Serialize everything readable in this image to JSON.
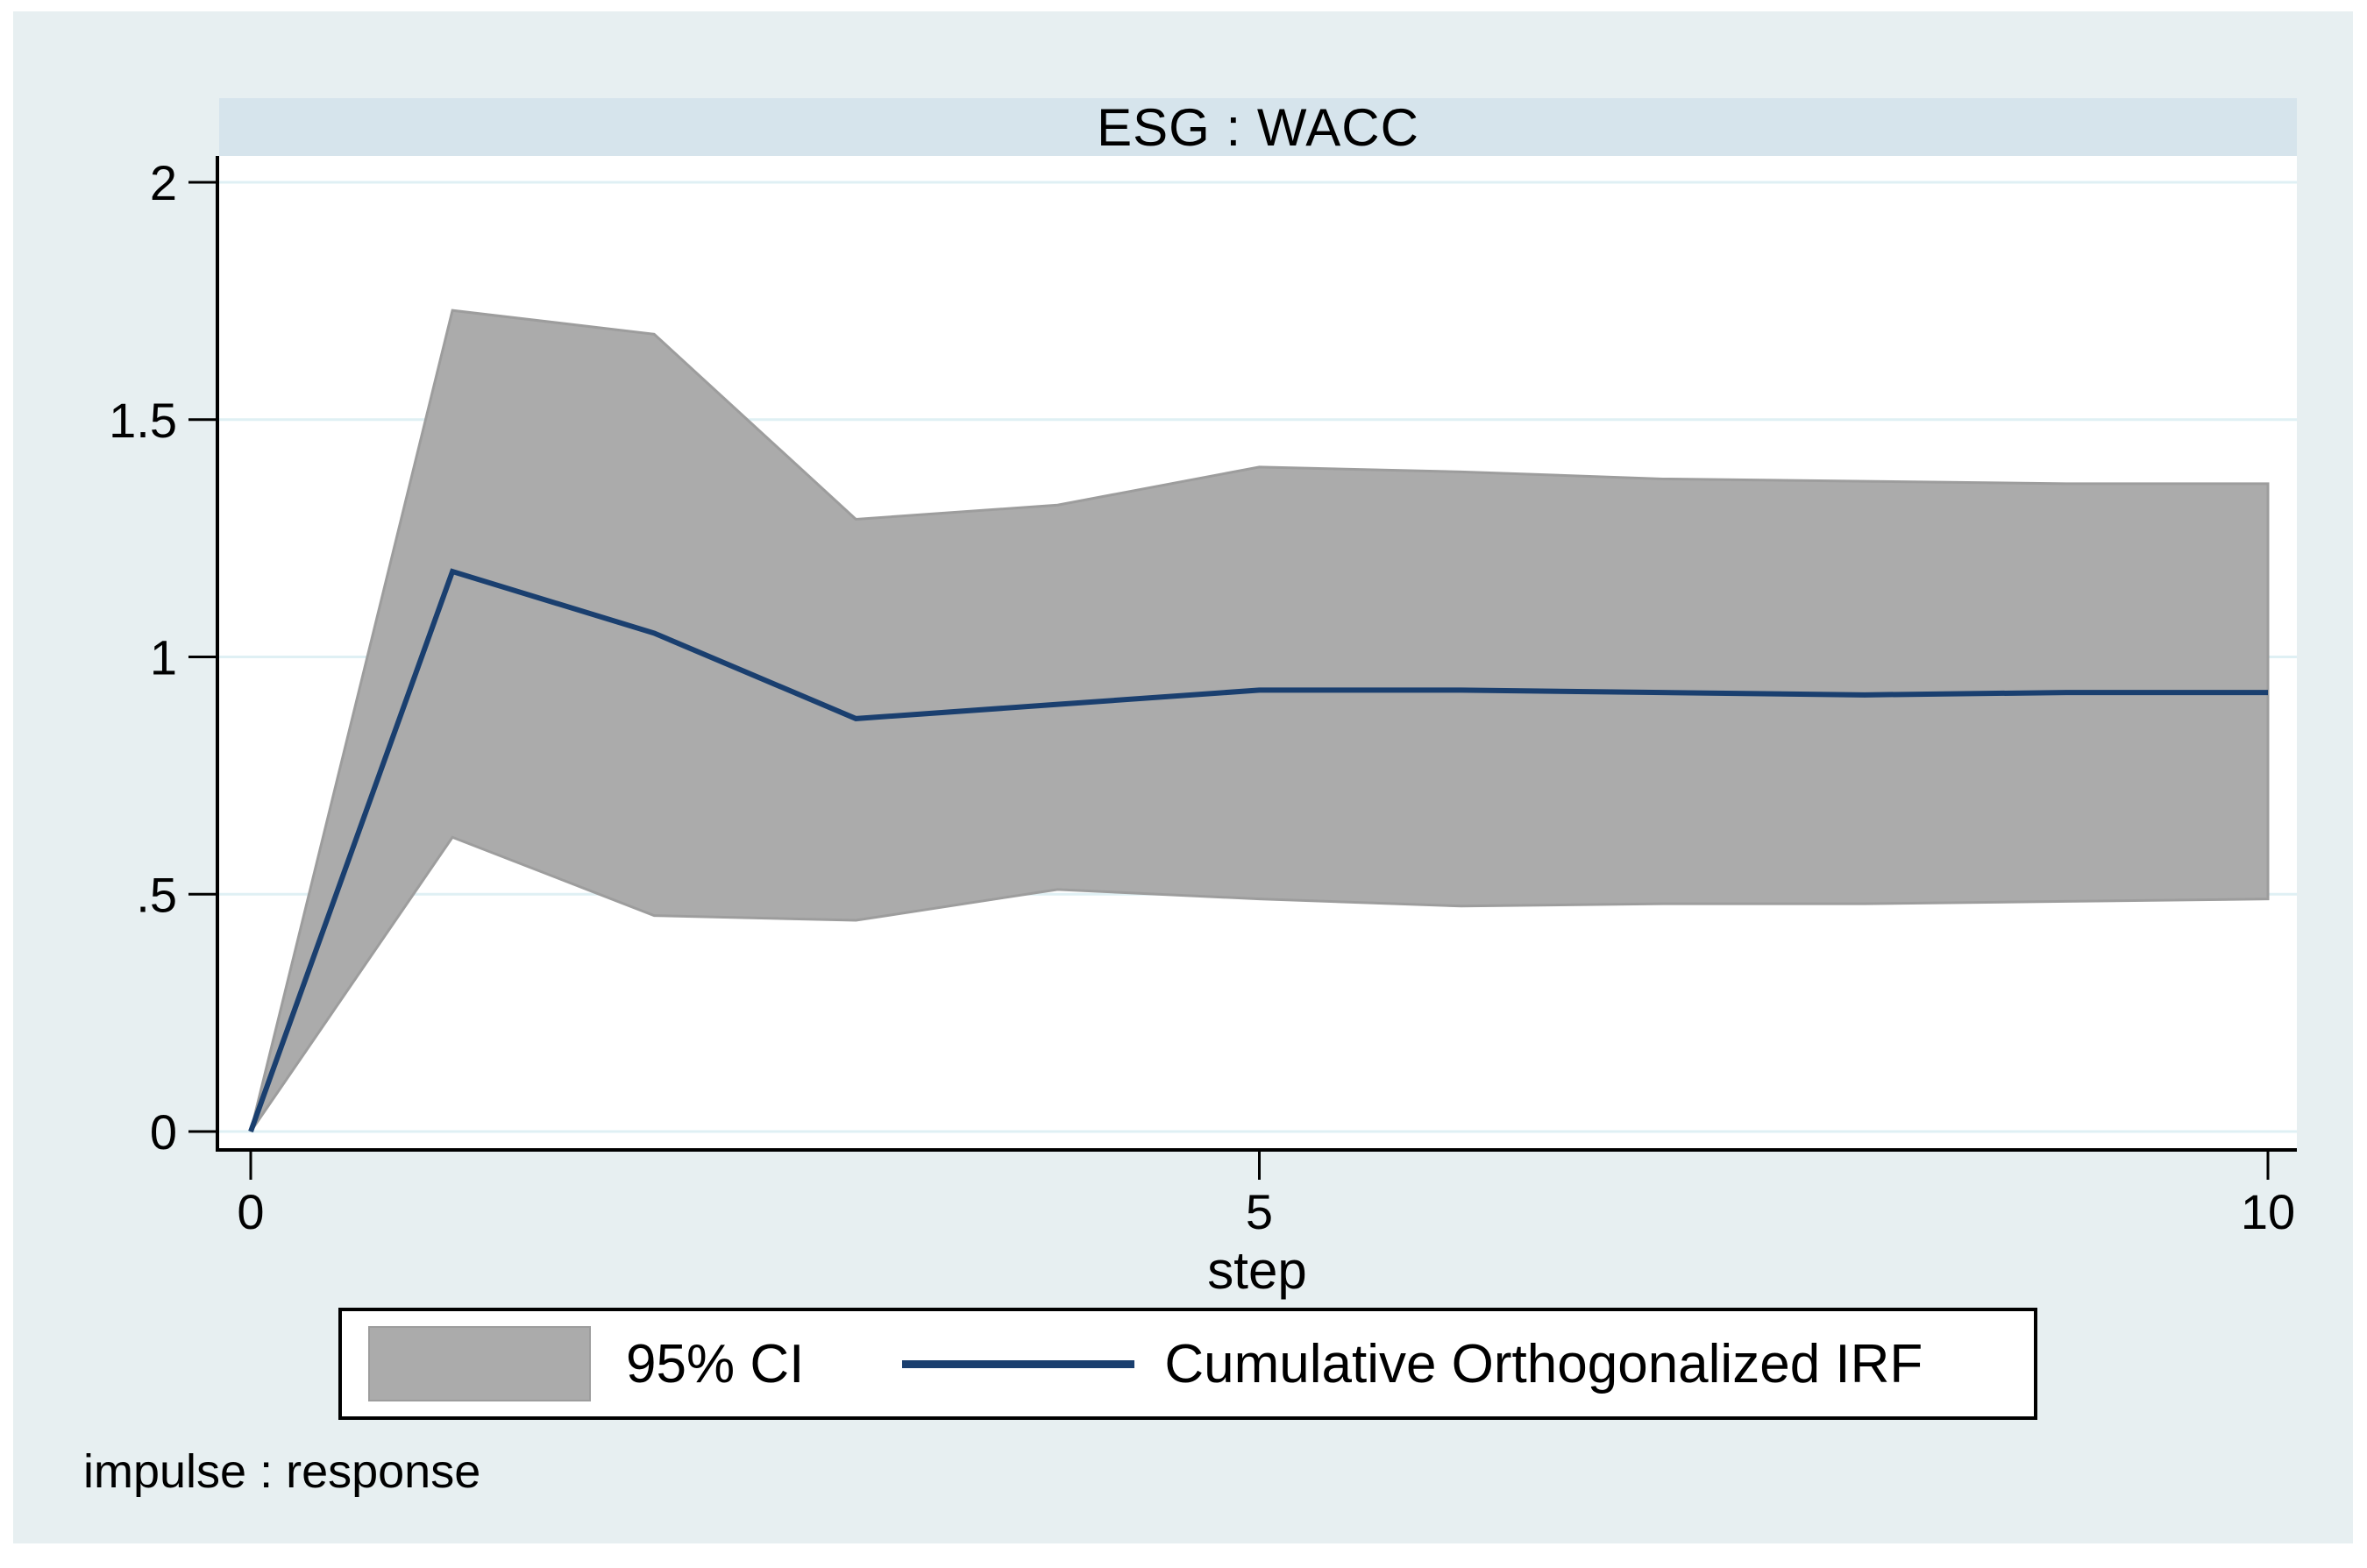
{
  "title": "ESG : WACC",
  "note": "impulse : response",
  "legend": {
    "ci_label": "95% CI",
    "irf_label": "Cumulative Orthogonalized IRF"
  },
  "colors": {
    "background": "#e7eff1",
    "plot_background": "#ffffff",
    "title_band": "#d6e4ec",
    "gridline": "#dff0f4",
    "ci_band": "#ababab",
    "ci_band_border": "#9d9d9d",
    "irf_line": "#1a3f6f",
    "axis": "#000000",
    "text": "#000000"
  },
  "chart_data": {
    "type": "area",
    "title": "ESG : WACC",
    "xlabel": "step",
    "ylabel": "",
    "x": [
      0,
      1,
      2,
      3,
      4,
      5,
      6,
      7,
      8,
      9,
      10
    ],
    "series": [
      {
        "name": "Cumulative Orthogonalized IRF",
        "role": "line",
        "values": [
          0,
          1.18,
          1.05,
          0.87,
          0.9,
          0.93,
          0.93,
          0.925,
          0.92,
          0.925,
          0.925
        ]
      },
      {
        "name": "95% CI upper",
        "role": "band-upper",
        "values": [
          0,
          1.73,
          1.68,
          1.29,
          1.32,
          1.4,
          1.39,
          1.375,
          1.37,
          1.365,
          1.365
        ]
      },
      {
        "name": "95% CI lower",
        "role": "band-lower",
        "values": [
          0,
          0.62,
          0.455,
          0.445,
          0.51,
          0.49,
          0.475,
          0.48,
          0.48,
          0.485,
          0.49
        ]
      }
    ],
    "xticks": [
      {
        "value": 0,
        "label": "0"
      },
      {
        "value": 5,
        "label": "5"
      },
      {
        "value": 10,
        "label": "10"
      }
    ],
    "yticks": [
      {
        "value": 0,
        "label": "0"
      },
      {
        "value": 0.5,
        "label": ".5"
      },
      {
        "value": 1,
        "label": "1"
      },
      {
        "value": 1.5,
        "label": "1.5"
      },
      {
        "value": 2,
        "label": "2"
      }
    ],
    "xlim": [
      0,
      10
    ],
    "ylim": [
      0,
      2.06
    ],
    "grid": "horizontal",
    "legend_position": "bottom"
  }
}
